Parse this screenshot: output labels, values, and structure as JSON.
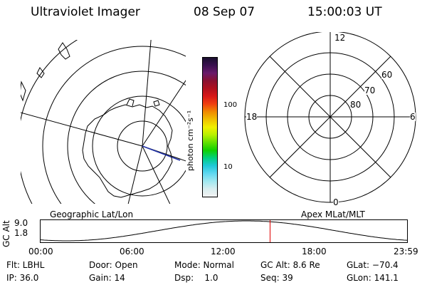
{
  "header": {
    "instrument": "Ultraviolet Imager",
    "date": "08 Sep 07",
    "time": "15:00:03 UT"
  },
  "colorbar": {
    "unit_label": "photon cm⁻²s⁻¹",
    "ticks": [
      "100",
      "10"
    ],
    "colors": [
      "#1a0f2e",
      "#3a1050",
      "#6a1a6a",
      "#8a1030",
      "#b0101e",
      "#d81818",
      "#f04010",
      "#f08a00",
      "#f0c000",
      "#f0f000",
      "#b8f000",
      "#60e000",
      "#10d000",
      "#00d080",
      "#20c8d8",
      "#60d8f0",
      "#a0e8f0",
      "#d8eef0",
      "#f2f2f2"
    ]
  },
  "map_labels": {
    "left_title": "Geographic Lat/Lon",
    "right_title": "Apex MLat/MLT"
  },
  "mlt_plot": {
    "hour_labels": [
      "12",
      "18",
      "6",
      "0"
    ],
    "lat_labels": [
      "60",
      "70",
      "80"
    ]
  },
  "altitude_plot": {
    "ylabel": "GC Alt",
    "ytick_top": "9.0",
    "ytick_bottom": "1.8",
    "x_ticks": [
      "00:00",
      "06:00",
      "12:00",
      "18:00",
      "23:59"
    ],
    "marker_time_hours": 15.0,
    "x_range_hours": [
      0,
      24
    ],
    "y_range_re": [
      1.8,
      9.0
    ]
  },
  "status": {
    "filter": "Flt: LBHL",
    "ip": "IP: 36.0",
    "door": "Door: Open",
    "gain": "Gain: 14",
    "mode": "Mode: Normal",
    "dsp": "Dsp:    1.0",
    "gc_alt": "GC Alt: 8.6 Re",
    "seq": "Seq: 39",
    "glat": "GLat: −70.4",
    "glon": "GLon: 141.1"
  }
}
